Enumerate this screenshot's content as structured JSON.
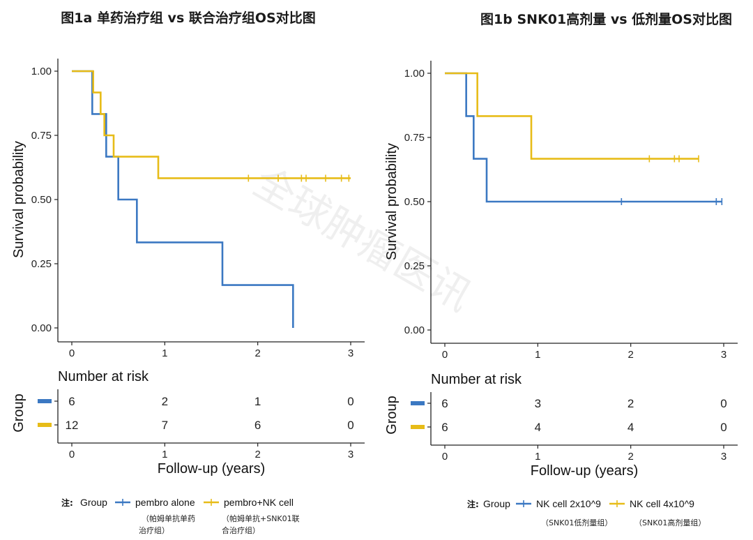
{
  "watermark": "全球肿瘤医讯",
  "colors": {
    "blue": "#3b78c2",
    "yellow": "#e7bc18",
    "axis": "#222222"
  },
  "chart_data": [
    {
      "type": "line",
      "subtype": "kaplan-meier",
      "title": "图1a  单药治疗组 vs 联合治疗组OS对比图",
      "xlabel": "Follow-up (years)",
      "ylabel": "Survival probability",
      "xlim": [
        0,
        3
      ],
      "ylim": [
        0,
        1
      ],
      "xticks": [
        "0",
        "1",
        "2",
        "3"
      ],
      "yticks": [
        "0.00",
        "0.25",
        "0.50",
        "0.75",
        "1.00"
      ],
      "series": [
        {
          "name": "pembro alone",
          "name_sub": [
            "（帕姆单抗单药",
            "治疗组）"
          ],
          "color": "#3b78c2",
          "steps": [
            [
              0,
              1.0
            ],
            [
              0.22,
              0.833
            ],
            [
              0.37,
              0.667
            ],
            [
              0.5,
              0.5
            ],
            [
              0.7,
              0.333
            ],
            [
              1.62,
              0.167
            ],
            [
              2.38,
              0.0
            ]
          ],
          "end": 2.38,
          "censors": []
        },
        {
          "name": "pembro+NK cell",
          "name_sub": [
            "（帕姆单抗+SNK01联",
            "合治疗组）"
          ],
          "color": "#e7bc18",
          "steps": [
            [
              0,
              1.0
            ],
            [
              0.23,
              0.917
            ],
            [
              0.31,
              0.833
            ],
            [
              0.35,
              0.75
            ],
            [
              0.45,
              0.667
            ],
            [
              0.93,
              0.583
            ]
          ],
          "end": 3.0,
          "censors": [
            1.9,
            2.22,
            2.47,
            2.52,
            2.73,
            2.9,
            2.98
          ]
        }
      ],
      "risk_table": {
        "title": "Number at risk",
        "group_label": "Group",
        "rows": [
          {
            "color": "#3b78c2",
            "values": [
              "6",
              "2",
              "1",
              "0"
            ]
          },
          {
            "color": "#e7bc18",
            "values": [
              "12",
              "7",
              "6",
              "0"
            ]
          }
        ]
      },
      "legend": {
        "prefix": "注:",
        "title": "Group"
      }
    },
    {
      "type": "line",
      "subtype": "kaplan-meier",
      "title": "图1b  SNK01高剂量 vs 低剂量OS对比图",
      "xlabel": "Follow-up (years)",
      "ylabel": "Survival probability",
      "xlim": [
        0,
        3
      ],
      "ylim": [
        0,
        1
      ],
      "xticks": [
        "0",
        "1",
        "2",
        "3"
      ],
      "yticks": [
        "0.00",
        "0.25",
        "0.50",
        "0.75",
        "1.00"
      ],
      "series": [
        {
          "name": "NK cell 2x10^9",
          "name_sub": [
            "（SNK01低剂量组）"
          ],
          "color": "#3b78c2",
          "steps": [
            [
              0,
              1.0
            ],
            [
              0.23,
              0.833
            ],
            [
              0.31,
              0.667
            ],
            [
              0.45,
              0.5
            ]
          ],
          "end": 2.98,
          "censors": [
            1.9,
            2.92,
            2.98
          ]
        },
        {
          "name": "NK cell 4x10^9",
          "name_sub": [
            "（SNK01高剂量组）"
          ],
          "color": "#e7bc18",
          "steps": [
            [
              0,
              1.0
            ],
            [
              0.35,
              0.833
            ],
            [
              0.93,
              0.667
            ]
          ],
          "end": 2.73,
          "censors": [
            2.2,
            2.47,
            2.52,
            2.73
          ]
        }
      ],
      "risk_table": {
        "title": "Number at risk",
        "group_label": "Group",
        "rows": [
          {
            "color": "#3b78c2",
            "values": [
              "6",
              "3",
              "2",
              "0"
            ]
          },
          {
            "color": "#e7bc18",
            "values": [
              "6",
              "4",
              "4",
              "0"
            ]
          }
        ]
      },
      "legend": {
        "prefix": "注:",
        "title": "Group"
      }
    }
  ]
}
